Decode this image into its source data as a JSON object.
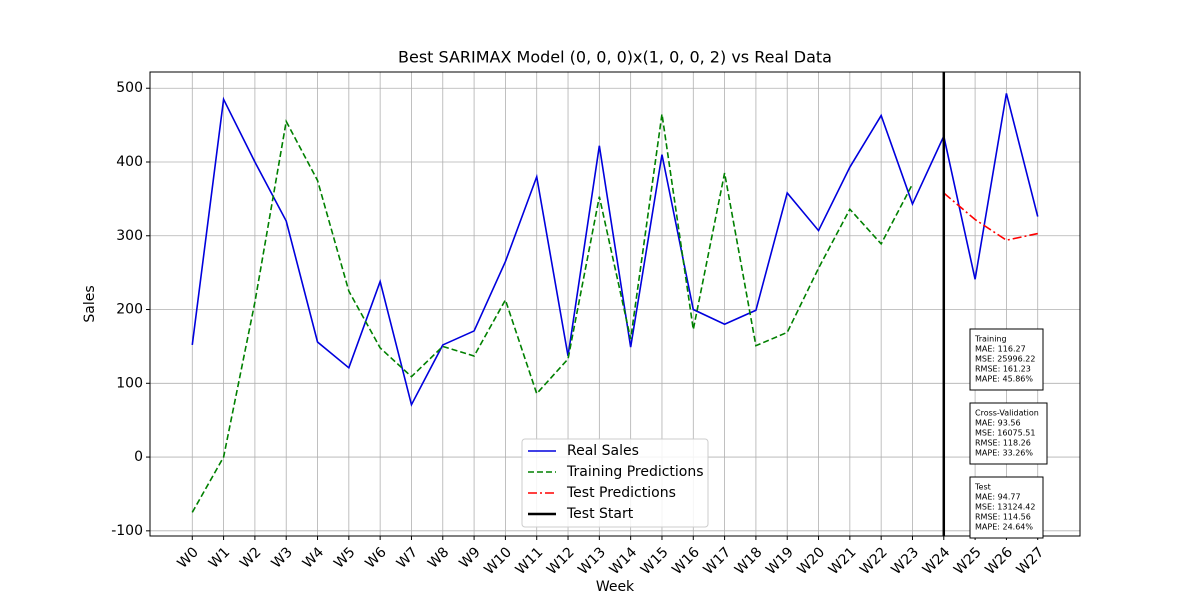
{
  "chart_data": {
    "type": "line",
    "title": "Best SARIMAX Model (0, 0, 0)x(1, 0, 0, 2) vs Real Data",
    "xlabel": "Week",
    "ylabel": "Sales",
    "categories": [
      "W0",
      "W1",
      "W2",
      "W3",
      "W4",
      "W5",
      "W6",
      "W7",
      "W8",
      "W9",
      "W10",
      "W11",
      "W12",
      "W13",
      "W14",
      "W15",
      "W16",
      "W17",
      "W18",
      "W19",
      "W20",
      "W21",
      "W22",
      "W23",
      "W24",
      "W25",
      "W26",
      "W27"
    ],
    "series": [
      {
        "name": "Real Sales",
        "color": "#0000dd",
        "dash": "solid",
        "values": [
          152,
          485,
          400,
          320,
          156,
          121,
          238,
          71,
          152,
          171,
          265,
          380,
          137,
          422,
          149,
          410,
          200,
          180,
          199,
          358,
          307,
          393,
          463,
          343,
          435,
          241,
          493,
          326
        ]
      },
      {
        "name": "Training Predictions",
        "color": "#008000",
        "dash": "dashed",
        "values": [
          -75,
          0,
          210,
          455,
          375,
          225,
          148,
          109,
          150,
          137,
          213,
          86,
          133,
          353,
          160,
          465,
          173,
          385,
          151,
          169,
          256,
          336,
          289,
          370,
          null,
          null,
          null,
          null
        ]
      },
      {
        "name": "Test Predictions",
        "color": "#ff0000",
        "dash": "dashdot",
        "values": [
          null,
          null,
          null,
          null,
          null,
          null,
          null,
          null,
          null,
          null,
          null,
          null,
          null,
          null,
          null,
          null,
          null,
          null,
          null,
          null,
          null,
          null,
          null,
          null,
          358,
          322,
          294,
          303
        ]
      }
    ],
    "vline": {
      "name": "Test Start",
      "x": "W24",
      "color": "#000000"
    },
    "ylim": [
      -107,
      522
    ],
    "yticks": [
      -100,
      0,
      100,
      200,
      300,
      400,
      500
    ],
    "grid": true,
    "legend": "lower center",
    "boxes": [
      {
        "title": "Training",
        "lines": [
          "MAE: 116.27",
          "MSE: 25996.22",
          "RMSE: 161.23",
          "MAPE: 45.86%"
        ]
      },
      {
        "title": "Cross-Validation",
        "lines": [
          "MAE: 93.56",
          "MSE: 16075.51",
          "RMSE: 118.26",
          "MAPE: 33.26%"
        ]
      },
      {
        "title": "Test",
        "lines": [
          "MAE: 94.77",
          "MSE: 13124.42",
          "RMSE: 114.56",
          "MAPE: 24.64%"
        ]
      }
    ]
  }
}
